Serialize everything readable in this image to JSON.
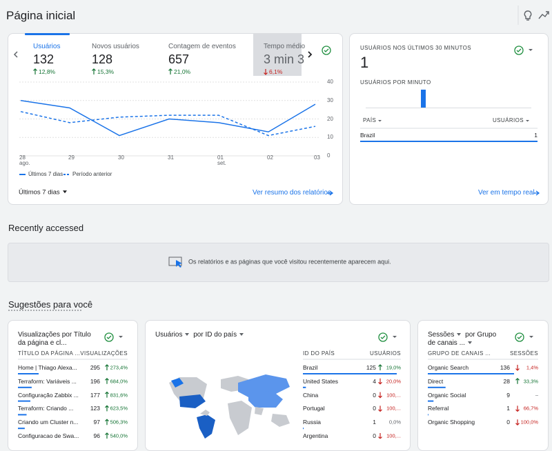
{
  "header": {
    "title": "Página inicial"
  },
  "overview": {
    "metrics": [
      {
        "label": "Usuários",
        "value": "132",
        "change": "12,8%",
        "trend": "up"
      },
      {
        "label": "Novos usuários",
        "value": "128",
        "change": "15,3%",
        "trend": "up"
      },
      {
        "label": "Contagem de eventos",
        "value": "657",
        "change": "21,0%",
        "trend": "up"
      },
      {
        "label": "Tempo médio",
        "value": "3 min 3",
        "change": "6,1%",
        "trend": "down"
      }
    ],
    "chart": {
      "type": "line",
      "categories": [
        {
          "day": "28",
          "month": "ago."
        },
        {
          "day": "29"
        },
        {
          "day": "30"
        },
        {
          "day": "31"
        },
        {
          "day": "01",
          "month": "set."
        },
        {
          "day": "02"
        },
        {
          "day": "03"
        }
      ],
      "series": [
        {
          "name": "Últimos 7 dias",
          "color": "#1a73e8",
          "style": "solid",
          "values": [
            30,
            26,
            11,
            20,
            18,
            13,
            28
          ]
        },
        {
          "name": "Período anterior",
          "color": "#1a73e8",
          "style": "dashed",
          "values": [
            24,
            18,
            21,
            22,
            22,
            11,
            16
          ]
        }
      ],
      "ylim": [
        0,
        40
      ],
      "yticks": [
        0,
        10,
        20,
        30,
        40
      ],
      "grid": true
    },
    "range": "Últimos 7 dias",
    "link": "Ver resumo dos relatórios"
  },
  "realtime": {
    "title": "USUÁRIOS NOS ÚLTIMOS 30 MINUTOS",
    "value": "1",
    "subtitle": "USUÁRIOS POR MINUTO",
    "chart": {
      "type": "bar",
      "color": "#1a73e8",
      "ylim": [
        0,
        1
      ],
      "values": [
        0,
        0,
        0,
        0,
        0,
        0,
        0,
        0,
        0,
        0,
        1,
        0,
        0,
        0,
        0,
        0,
        0,
        0,
        0,
        0,
        0,
        0,
        0,
        0,
        0,
        0,
        0,
        0,
        0,
        0
      ]
    },
    "columns": [
      "PAÍS",
      "USUÁRIOS"
    ],
    "rows": [
      {
        "name": "Brazil",
        "value": 1
      }
    ],
    "link": "Ver em tempo real"
  },
  "recent": {
    "title": "Recently accessed",
    "message": "Os relatórios e as páginas que você visitou recentemente aparecem aqui."
  },
  "suggestions": {
    "title": "Sugestões para você",
    "cards": [
      {
        "metric": "Visualizações por",
        "dimension": "Título da página e cl...",
        "dropdowns": false,
        "columns": [
          "TÍTULO DA PÁGINA ...",
          "VISUALIZAÇÕES"
        ],
        "rows": [
          {
            "name": "Home | Thiago Alexa...",
            "value": 295,
            "change": "273,4%",
            "trend": "up"
          },
          {
            "name": "Terraform: Variáveis ...",
            "value": 196,
            "change": "684,0%",
            "trend": "up"
          },
          {
            "name": "Configuração Zabbix ...",
            "value": 177,
            "change": "831,6%",
            "trend": "up"
          },
          {
            "name": "Terraform: Criando ...",
            "value": 123,
            "change": "623,5%",
            "trend": "up"
          },
          {
            "name": "Criando um Cluster n...",
            "value": 97,
            "change": "506,3%",
            "trend": "up"
          },
          {
            "name": "Configuracao de Swa...",
            "value": 96,
            "change": "540,0%",
            "trend": "up"
          }
        ]
      },
      {
        "metric": "Usuários",
        "dimension": "por ID do país",
        "dropdowns": true,
        "columns": [
          "ID DO PAÍS",
          "USUÁRIOS"
        ],
        "rows": [
          {
            "name": "Brazil",
            "value": 125,
            "change": "19,0%",
            "trend": "up"
          },
          {
            "name": "United States",
            "value": 4,
            "change": "20,0%",
            "trend": "down"
          },
          {
            "name": "China",
            "value": 0,
            "change": "100,...",
            "trend": "down"
          },
          {
            "name": "Portugal",
            "value": 0,
            "change": "100,...",
            "trend": "down"
          },
          {
            "name": "Russia",
            "value": 1,
            "change": "0,0%"
          },
          {
            "name": "Argentina",
            "value": 0,
            "change": "100,...",
            "trend": "down"
          }
        ]
      },
      {
        "metric": "Sessões",
        "connector": "por",
        "dimension": "Grupo de canais ...",
        "dropdowns": true,
        "columns": [
          "GRUPO DE CANAIS ...",
          "SESSÕES"
        ],
        "rows": [
          {
            "name": "Organic Search",
            "value": 136,
            "change": "1,4%",
            "trend": "down"
          },
          {
            "name": "Direct",
            "value": 28,
            "change": "33,3%",
            "trend": "up"
          },
          {
            "name": "Organic Social",
            "value": 9,
            "change": "–"
          },
          {
            "name": "Referral",
            "value": 1,
            "change": "66,7%",
            "trend": "down"
          },
          {
            "name": "Organic Shopping",
            "value": 0,
            "change": "100,0%",
            "trend": "down"
          }
        ]
      }
    ]
  }
}
